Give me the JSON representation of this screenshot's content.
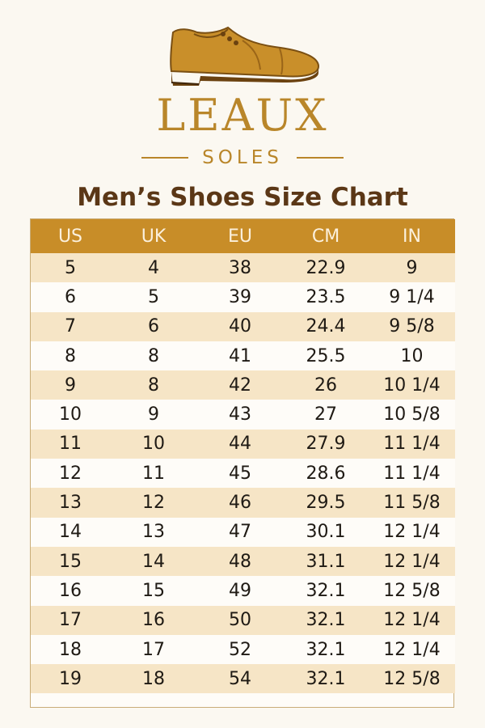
{
  "brand": {
    "name": "LEAUX",
    "tagline": "SOLES",
    "logo_icon": "shoe-icon",
    "color": "#b9862a"
  },
  "title": "Men’s Shoes Size Chart",
  "colors": {
    "header_bg": "#c88d28",
    "stripe": "#f6e5c6",
    "title": "#5b3716"
  },
  "table": {
    "headers": [
      "US",
      "UK",
      "EU",
      "CM",
      "IN"
    ],
    "rows": [
      [
        "5",
        "4",
        "38",
        "22.9",
        "9"
      ],
      [
        "6",
        "5",
        "39",
        "23.5",
        "9 1/4"
      ],
      [
        "7",
        "6",
        "40",
        "24.4",
        "9 5/8"
      ],
      [
        "8",
        "8",
        "41",
        "25.5",
        "10"
      ],
      [
        "9",
        "8",
        "42",
        "26",
        "10 1/4"
      ],
      [
        "10",
        "9",
        "43",
        "27",
        "10 5/8"
      ],
      [
        "11",
        "10",
        "44",
        "27.9",
        "11 1/4"
      ],
      [
        "12",
        "11",
        "45",
        "28.6",
        "11 1/4"
      ],
      [
        "13",
        "12",
        "46",
        "29.5",
        "11 5/8"
      ],
      [
        "14",
        "13",
        "47",
        "30.1",
        "12 1/4"
      ],
      [
        "15",
        "14",
        "48",
        "31.1",
        "12 1/4"
      ],
      [
        "16",
        "15",
        "49",
        "32.1",
        "12 5/8"
      ],
      [
        "17",
        "16",
        "50",
        "32.1",
        "12 1/4"
      ],
      [
        "18",
        "17",
        "52",
        "32.1",
        "12 1/4"
      ],
      [
        "19",
        "18",
        "54",
        "32.1",
        "12 5/8"
      ]
    ]
  }
}
